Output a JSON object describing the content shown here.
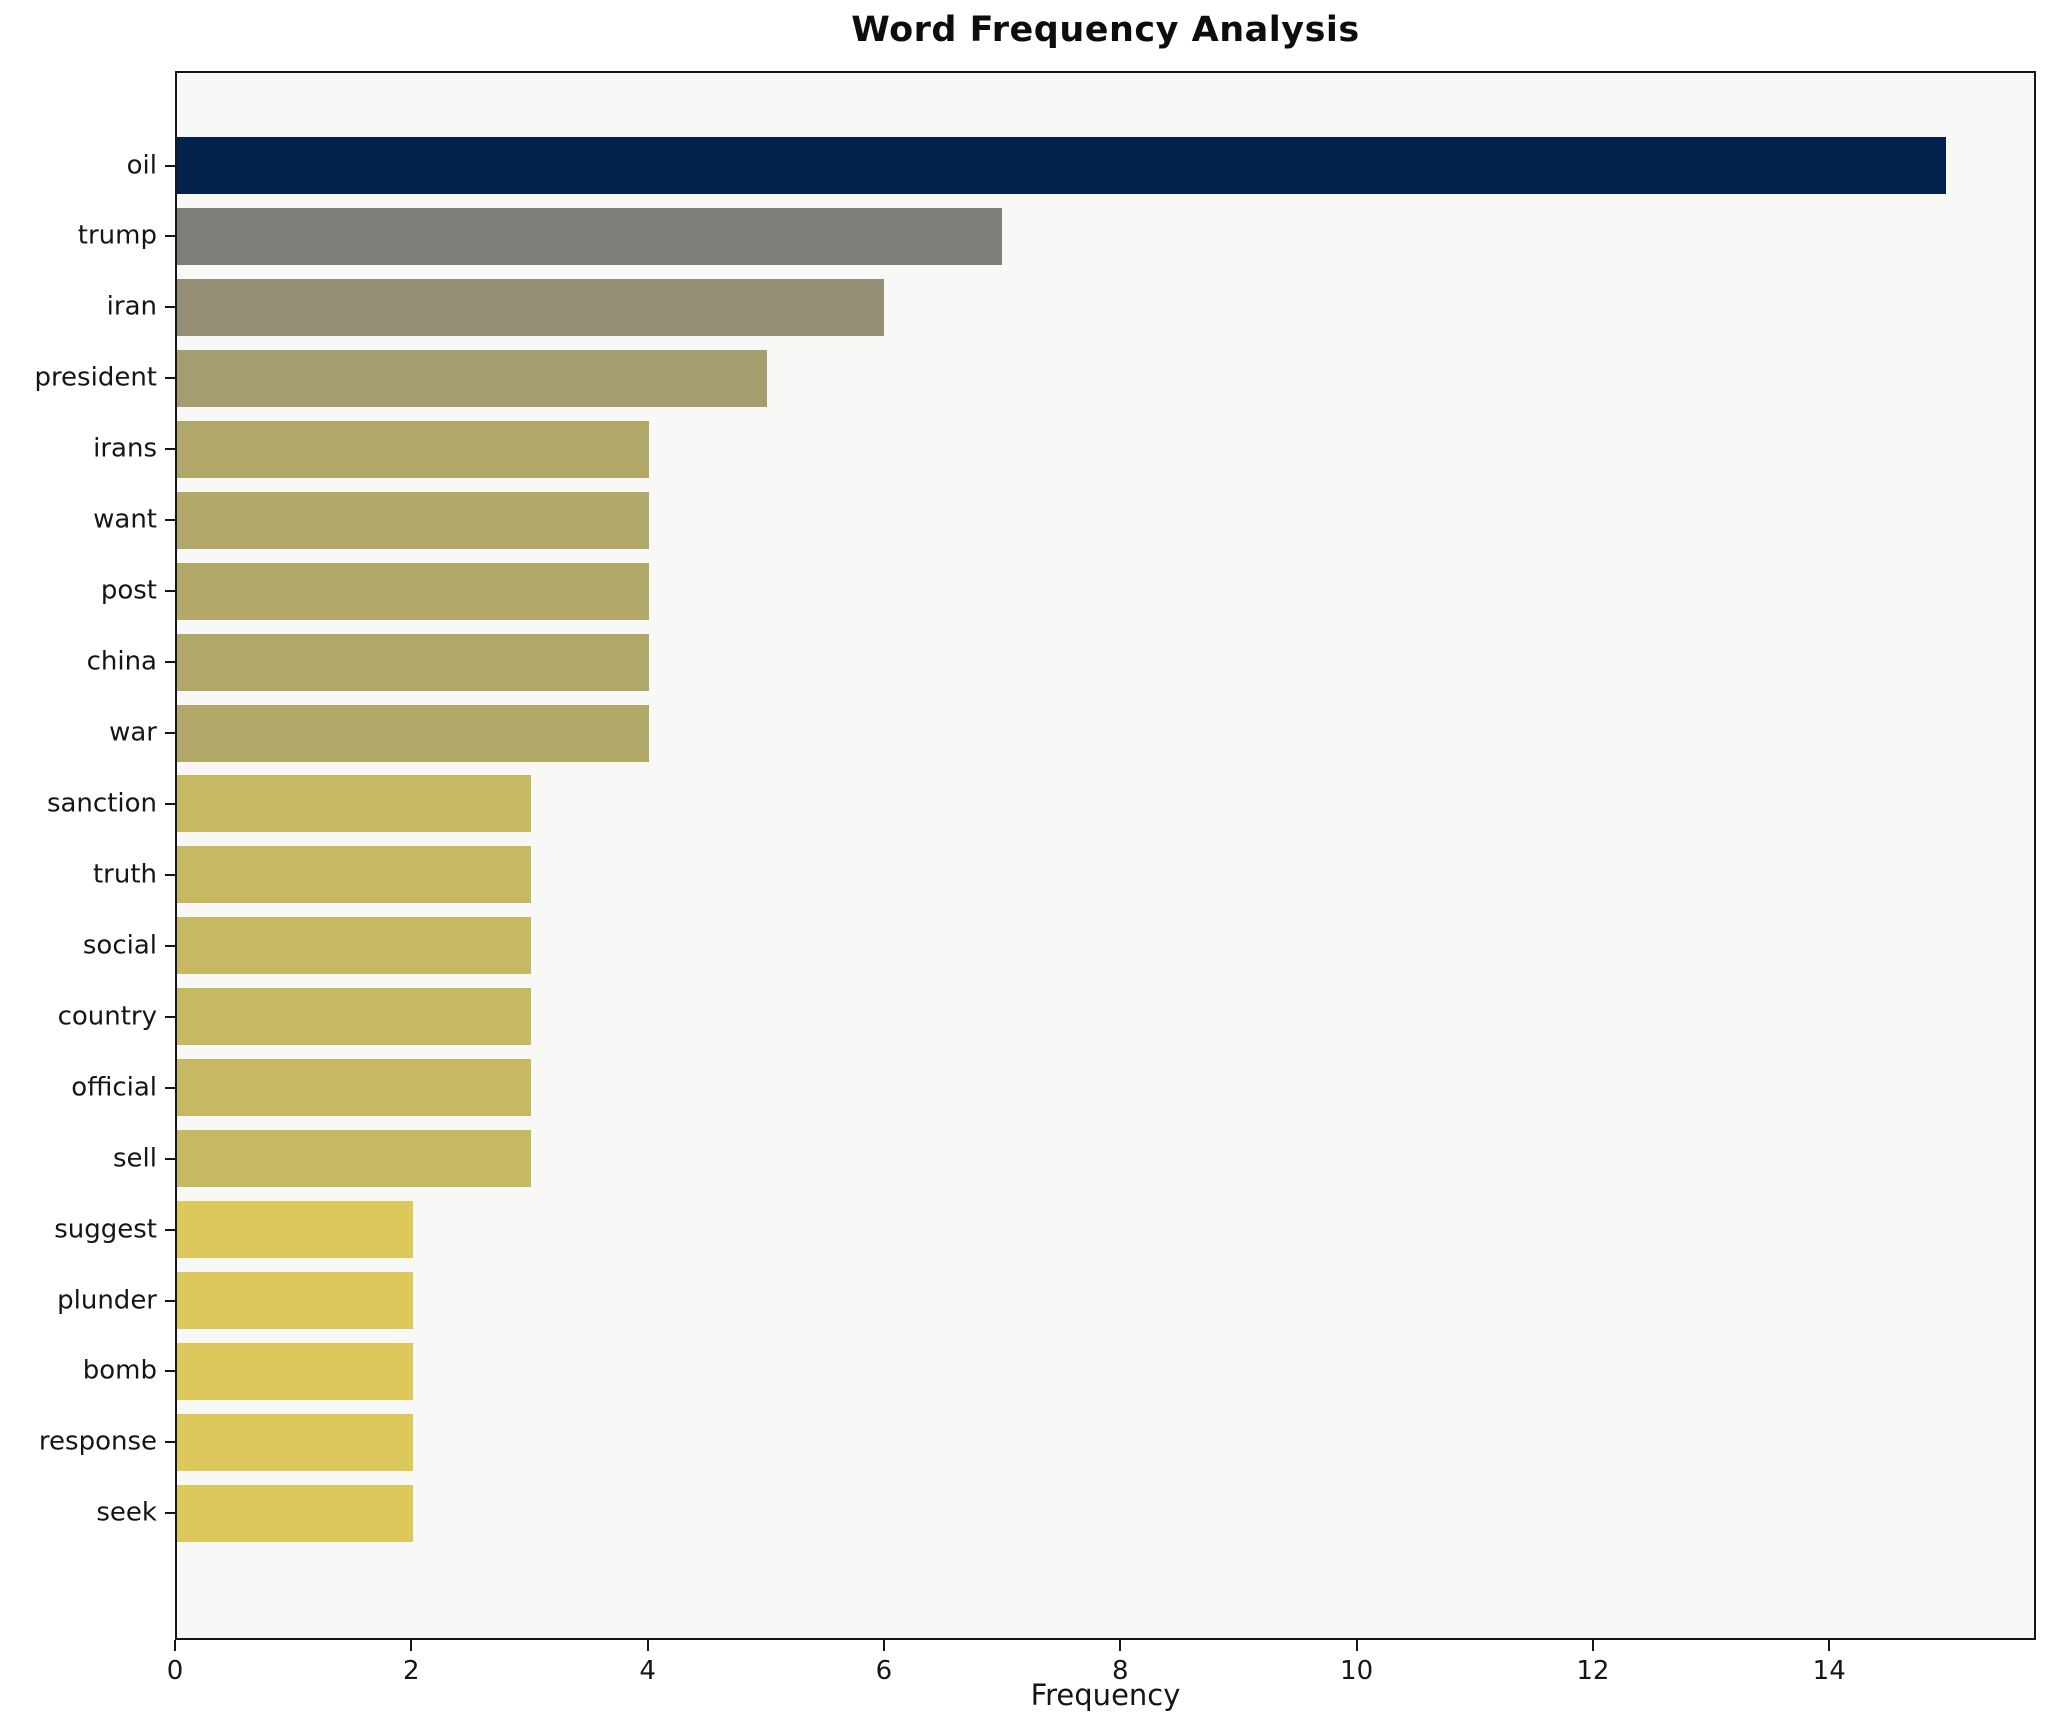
{
  "title": "Word Frequency Analysis",
  "xlabel": "Frequency",
  "chart_data": {
    "type": "bar",
    "orientation": "horizontal",
    "title": "Word Frequency Analysis",
    "xlabel": "Frequency",
    "ylabel": "",
    "categories": [
      "oil",
      "trump",
      "iran",
      "president",
      "irans",
      "want",
      "post",
      "china",
      "war",
      "sanction",
      "truth",
      "social",
      "country",
      "official",
      "sell",
      "suggest",
      "plunder",
      "bomb",
      "response",
      "seek"
    ],
    "values": [
      15,
      7,
      6,
      5,
      4,
      4,
      4,
      4,
      4,
      3,
      3,
      3,
      3,
      3,
      3,
      2,
      2,
      2,
      2,
      2
    ],
    "bar_colors": [
      "#02234e",
      "#7f7e78",
      "#948f74",
      "#a59d70",
      "#b2a868",
      "#b2a868",
      "#b2a868",
      "#b2a868",
      "#b2a868",
      "#c7b961",
      "#c7b961",
      "#c7b961",
      "#c7b961",
      "#c7b961",
      "#c7b961",
      "#dcc85b",
      "#dcc85b",
      "#dcc85b",
      "#dcc85b",
      "#dcc85b"
    ],
    "xlim": [
      0,
      15.75
    ],
    "xticks": [
      0,
      2,
      4,
      6,
      8,
      10,
      12,
      14
    ],
    "grid": false,
    "legend_position": "none",
    "plot_background": "#f8f8f7",
    "figure_background": "#ffffff",
    "spine_color": "#161616",
    "bar_height_fraction": 0.8
  }
}
